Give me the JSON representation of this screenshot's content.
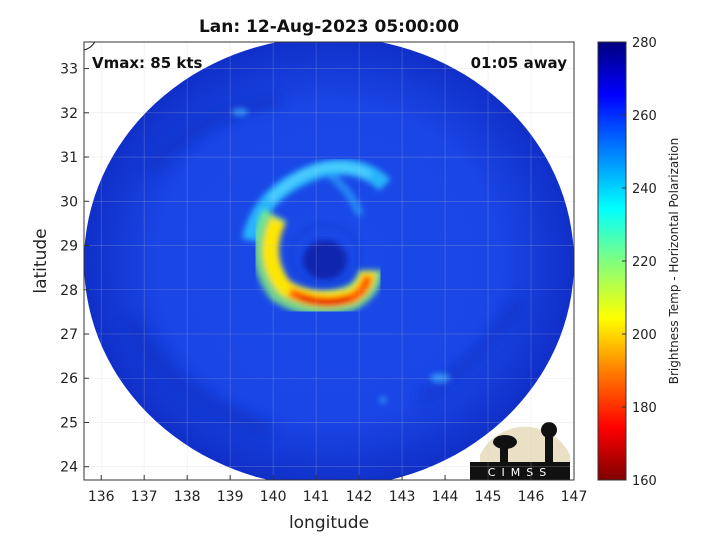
{
  "title": "Lan: 12-Aug-2023 05:00:00",
  "vmax_label": "Vmax: 85 kts",
  "away_label": "01:05 away",
  "xlabel": "longitude",
  "ylabel": "latitude",
  "x_ticks": [
    "136",
    "137",
    "138",
    "139",
    "140",
    "141",
    "142",
    "143",
    "144",
    "145",
    "146",
    "147"
  ],
  "y_ticks": [
    "24",
    "25",
    "26",
    "27",
    "28",
    "29",
    "30",
    "31",
    "32",
    "33"
  ],
  "colorbar": {
    "label": "Brightness Temp - Horizontal Polarization",
    "ticks": [
      "160",
      "180",
      "200",
      "220",
      "240",
      "260",
      "280"
    ],
    "range": [
      160,
      280
    ],
    "colors": [
      "#7f0000",
      "#ff0000",
      "#ff8000",
      "#ffff00",
      "#80ff80",
      "#00ffff",
      "#0080ff",
      "#0000ff",
      "#00007f"
    ]
  },
  "logo_text": "CIMSS",
  "colors": {
    "background_swath": "#1a46e6",
    "outer_ring": "#102fc8",
    "eyewall_warm": "#ff3a00",
    "eyewall_yellow": "#ffea00",
    "eye": "#0a1aa0"
  },
  "chart_data": {
    "type": "heatmap",
    "title": "Lan: 12-Aug-2023 05:00:00",
    "xlabel": "longitude",
    "ylabel": "latitude",
    "xlim": [
      135.6,
      147
    ],
    "ylim": [
      23.7,
      33.6
    ],
    "center": {
      "lon": 141.2,
      "lat": 28.9
    },
    "swath_radius_deg": 5.6,
    "color_range": [
      160,
      280
    ]
  }
}
